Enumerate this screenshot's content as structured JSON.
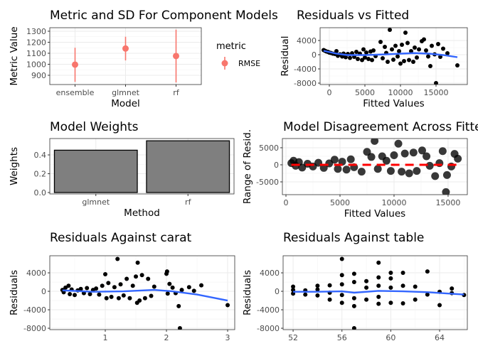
{
  "chart_data": [
    {
      "type": "pointrange",
      "title": "Metric and SD For Component Models",
      "xlabel": "Model",
      "ylabel": "Metric Value",
      "categories": [
        "ensemble",
        "glmnet",
        "rf"
      ],
      "values": [
        997,
        1143,
        1075
      ],
      "lower": [
        840,
        1035,
        835
      ],
      "upper": [
        1150,
        1250,
        1315
      ],
      "ylim": [
        816,
        1332
      ],
      "yticks": [
        900,
        1000,
        1100,
        1200,
        1300
      ],
      "legend": {
        "title": "metric",
        "entries": [
          "RMSE"
        ],
        "placement": "right"
      },
      "color": "#f8766d"
    },
    {
      "type": "scatter",
      "title": "Residuals vs Fitted",
      "xlabel": "Fitted Values",
      "ylabel": "Residual",
      "xlim": [
        -1300,
        19400
      ],
      "ylim": [
        -8400,
        7600
      ],
      "xticks": [
        0,
        5000,
        10000,
        15000
      ],
      "yticks": [
        4000,
        0,
        -4000,
        -8000
      ],
      "points": [
        [
          -800,
          1300
        ],
        [
          -600,
          1100
        ],
        [
          -400,
          900
        ],
        [
          -200,
          800
        ],
        [
          0,
          600
        ],
        [
          200,
          500
        ],
        [
          500,
          300
        ],
        [
          800,
          200
        ],
        [
          1000,
          1000
        ],
        [
          1200,
          -300
        ],
        [
          1500,
          100
        ],
        [
          1800,
          -500
        ],
        [
          2000,
          300
        ],
        [
          2300,
          -700
        ],
        [
          2600,
          200
        ],
        [
          2900,
          -900
        ],
        [
          3200,
          400
        ],
        [
          3500,
          -600
        ],
        [
          3800,
          800
        ],
        [
          4000,
          -1200
        ],
        [
          4300,
          300
        ],
        [
          4600,
          -1500
        ],
        [
          4800,
          1500
        ],
        [
          5000,
          -800
        ],
        [
          5200,
          600
        ],
        [
          5500,
          -1200
        ],
        [
          5800,
          900
        ],
        [
          6000,
          -1500
        ],
        [
          6200,
          1200
        ],
        [
          6500,
          -400
        ],
        [
          7200,
          3600
        ],
        [
          7500,
          -1000
        ],
        [
          7800,
          2200
        ],
        [
          8000,
          500
        ],
        [
          8200,
          -2000
        ],
        [
          8500,
          7000
        ],
        [
          8800,
          1500
        ],
        [
          9000,
          -1400
        ],
        [
          9300,
          2500
        ],
        [
          9600,
          -500
        ],
        [
          9800,
          1000
        ],
        [
          10000,
          -2500
        ],
        [
          10200,
          2800
        ],
        [
          10500,
          -1800
        ],
        [
          10700,
          6200
        ],
        [
          11000,
          3300
        ],
        [
          11200,
          -1500
        ],
        [
          11500,
          1000
        ],
        [
          11800,
          -2000
        ],
        [
          12000,
          2000
        ],
        [
          12300,
          -800
        ],
        [
          12600,
          1500
        ],
        [
          13000,
          3800
        ],
        [
          13300,
          4300
        ],
        [
          13600,
          1200
        ],
        [
          13900,
          -500
        ],
        [
          14200,
          -3200
        ],
        [
          14400,
          2500
        ],
        [
          14800,
          100
        ],
        [
          15000,
          -8000
        ],
        [
          15300,
          3000
        ],
        [
          15600,
          -600
        ],
        [
          16000,
          1700
        ],
        [
          16600,
          400
        ],
        [
          18000,
          -3000
        ]
      ],
      "smooth": [
        [
          -800,
          1100
        ],
        [
          1000,
          300
        ],
        [
          2500,
          -100
        ],
        [
          5000,
          -100
        ],
        [
          8000,
          100
        ],
        [
          10000,
          300
        ],
        [
          12000,
          450
        ],
        [
          14000,
          300
        ],
        [
          16000,
          -100
        ],
        [
          18000,
          -700
        ]
      ],
      "smooth_color": "#3366ff"
    },
    {
      "type": "bar",
      "title": "Model Weights",
      "xlabel": "Method",
      "ylabel": "Weights",
      "categories": [
        "glmnet",
        "rf"
      ],
      "values": [
        0.45,
        0.55
      ],
      "ylim": [
        -0.015,
        0.574
      ],
      "yticks": [
        0.0,
        0.2,
        0.4
      ],
      "ytick_labels": [
        "0.0",
        "0.2",
        "0.4"
      ],
      "color": "#7f7f7f"
    },
    {
      "type": "scatter",
      "title": "Model Disagreement Across Fitted Values",
      "xlabel": "Fitted Values",
      "ylabel": "Range of Resid.",
      "xlim": [
        -330,
        16780
      ],
      "ylim": [
        -8750,
        7700
      ],
      "xticks": [
        0,
        5000,
        10000,
        15000
      ],
      "yticks": [
        5000,
        0,
        -5000
      ],
      "points": [
        [
          500,
          500
        ],
        [
          700,
          1200
        ],
        [
          900,
          -300
        ],
        [
          1200,
          800
        ],
        [
          1500,
          -800
        ],
        [
          2000,
          300
        ],
        [
          2500,
          -500
        ],
        [
          3000,
          600
        ],
        [
          3500,
          -900
        ],
        [
          4000,
          400
        ],
        [
          4500,
          1500
        ],
        [
          4800,
          -1200
        ],
        [
          5200,
          900
        ],
        [
          5600,
          -1400
        ],
        [
          6000,
          1600
        ],
        [
          6300,
          -700
        ],
        [
          7000,
          -2000
        ],
        [
          7500,
          3800
        ],
        [
          7900,
          2300
        ],
        [
          8200,
          7000
        ],
        [
          8500,
          -1200
        ],
        [
          8900,
          2500
        ],
        [
          9300,
          1200
        ],
        [
          9700,
          -1800
        ],
        [
          10000,
          2800
        ],
        [
          10400,
          6200
        ],
        [
          10700,
          -2000
        ],
        [
          11000,
          3300
        ],
        [
          11400,
          -2500
        ],
        [
          11800,
          3600
        ],
        [
          12100,
          -1800
        ],
        [
          12600,
          4200
        ],
        [
          13000,
          2500
        ],
        [
          13300,
          -300
        ],
        [
          13800,
          -3300
        ],
        [
          14200,
          500
        ],
        [
          14500,
          4000
        ],
        [
          14800,
          -8000
        ],
        [
          14900,
          -3000
        ],
        [
          15300,
          -500
        ],
        [
          15600,
          3200
        ],
        [
          15900,
          1800
        ]
      ],
      "hline": 0,
      "hline_color": "#ff0000"
    },
    {
      "type": "scatter",
      "title": "Residuals Against carat",
      "xlabel": "carat",
      "ylabel": "Residuals",
      "xlim": [
        0.093,
        3.116
      ],
      "ylim": [
        -8300,
        7700
      ],
      "xticks": [
        1,
        2,
        3
      ],
      "yticks": [
        4000,
        0,
        -4000,
        -8000
      ],
      "points": [
        [
          0.3,
          300
        ],
        [
          0.32,
          -200
        ],
        [
          0.35,
          800
        ],
        [
          0.4,
          1200
        ],
        [
          0.42,
          -600
        ],
        [
          0.45,
          400
        ],
        [
          0.5,
          -800
        ],
        [
          0.55,
          200
        ],
        [
          0.6,
          500
        ],
        [
          0.65,
          -400
        ],
        [
          0.7,
          700
        ],
        [
          0.75,
          -600
        ],
        [
          0.8,
          300
        ],
        [
          0.85,
          600
        ],
        [
          0.9,
          -700
        ],
        [
          0.95,
          1200
        ],
        [
          1.0,
          3700
        ],
        [
          1.02,
          -1500
        ],
        [
          1.05,
          1800
        ],
        [
          1.1,
          -1200
        ],
        [
          1.15,
          900
        ],
        [
          1.2,
          7000
        ],
        [
          1.22,
          -1500
        ],
        [
          1.25,
          1500
        ],
        [
          1.3,
          -900
        ],
        [
          1.35,
          2700
        ],
        [
          1.4,
          -1500
        ],
        [
          1.45,
          1200
        ],
        [
          1.5,
          3200
        ],
        [
          1.52,
          -2500
        ],
        [
          1.53,
          6200
        ],
        [
          1.56,
          -2000
        ],
        [
          1.6,
          3500
        ],
        [
          1.65,
          -1500
        ],
        [
          1.7,
          2700
        ],
        [
          1.75,
          -1000
        ],
        [
          1.8,
          1000
        ],
        [
          2.0,
          3800
        ],
        [
          2.01,
          4300
        ],
        [
          2.02,
          -500
        ],
        [
          2.05,
          1600
        ],
        [
          2.1,
          800
        ],
        [
          2.15,
          -400
        ],
        [
          2.2,
          -3200
        ],
        [
          2.22,
          -8000
        ],
        [
          2.25,
          300
        ],
        [
          2.37,
          900
        ],
        [
          2.45,
          100
        ],
        [
          2.57,
          1300
        ],
        [
          3.0,
          -3000
        ]
      ],
      "smooth": [
        [
          0.3,
          200
        ],
        [
          0.8,
          -100
        ],
        [
          1.3,
          0
        ],
        [
          1.8,
          300
        ],
        [
          2.1,
          0
        ],
        [
          2.5,
          -700
        ],
        [
          3.0,
          -2000
        ]
      ],
      "smooth_color": "#3366ff"
    },
    {
      "type": "scatter",
      "title": "Residuals Against table",
      "xlabel": "table",
      "ylabel": "Residuals",
      "xlim": [
        51.18,
        66.27
      ],
      "ylim": [
        -8300,
        7700
      ],
      "xticks": [
        52,
        56,
        60,
        64
      ],
      "yticks": [
        4000,
        0,
        -4000,
        -8000
      ],
      "points": [
        [
          52,
          1000
        ],
        [
          52,
          -500
        ],
        [
          52,
          300
        ],
        [
          53,
          -700
        ],
        [
          53,
          200
        ],
        [
          54,
          1200
        ],
        [
          54,
          -900
        ],
        [
          54,
          400
        ],
        [
          55,
          1300
        ],
        [
          55,
          -1800
        ],
        [
          55,
          -300
        ],
        [
          56,
          3500
        ],
        [
          56,
          7000
        ],
        [
          56,
          -2500
        ],
        [
          56,
          1500
        ],
        [
          56,
          -800
        ],
        [
          57,
          3800
        ],
        [
          57,
          -3200
        ],
        [
          57,
          -8000
        ],
        [
          57,
          2000
        ],
        [
          57,
          -1500
        ],
        [
          58,
          2200
        ],
        [
          58,
          -1800
        ],
        [
          58,
          800
        ],
        [
          59,
          3000
        ],
        [
          59,
          6200
        ],
        [
          59,
          -2700
        ],
        [
          59,
          1200
        ],
        [
          59,
          -1200
        ],
        [
          60,
          4000
        ],
        [
          60,
          2800
        ],
        [
          60,
          -2500
        ],
        [
          60,
          800
        ],
        [
          61,
          4000
        ],
        [
          61,
          -2600
        ],
        [
          61,
          1200
        ],
        [
          62,
          1000
        ],
        [
          62,
          -1800
        ],
        [
          63,
          4300
        ],
        [
          63,
          -700
        ],
        [
          64,
          -3000
        ],
        [
          64,
          -100
        ],
        [
          65,
          600
        ],
        [
          65,
          -400
        ],
        [
          66,
          -800
        ]
      ],
      "smooth": [
        [
          52,
          -100
        ],
        [
          54,
          -100
        ],
        [
          56,
          0
        ],
        [
          57,
          -300
        ],
        [
          59,
          100
        ],
        [
          61,
          0
        ],
        [
          63,
          -200
        ],
        [
          66,
          -700
        ]
      ],
      "smooth_color": "#3366ff"
    }
  ]
}
